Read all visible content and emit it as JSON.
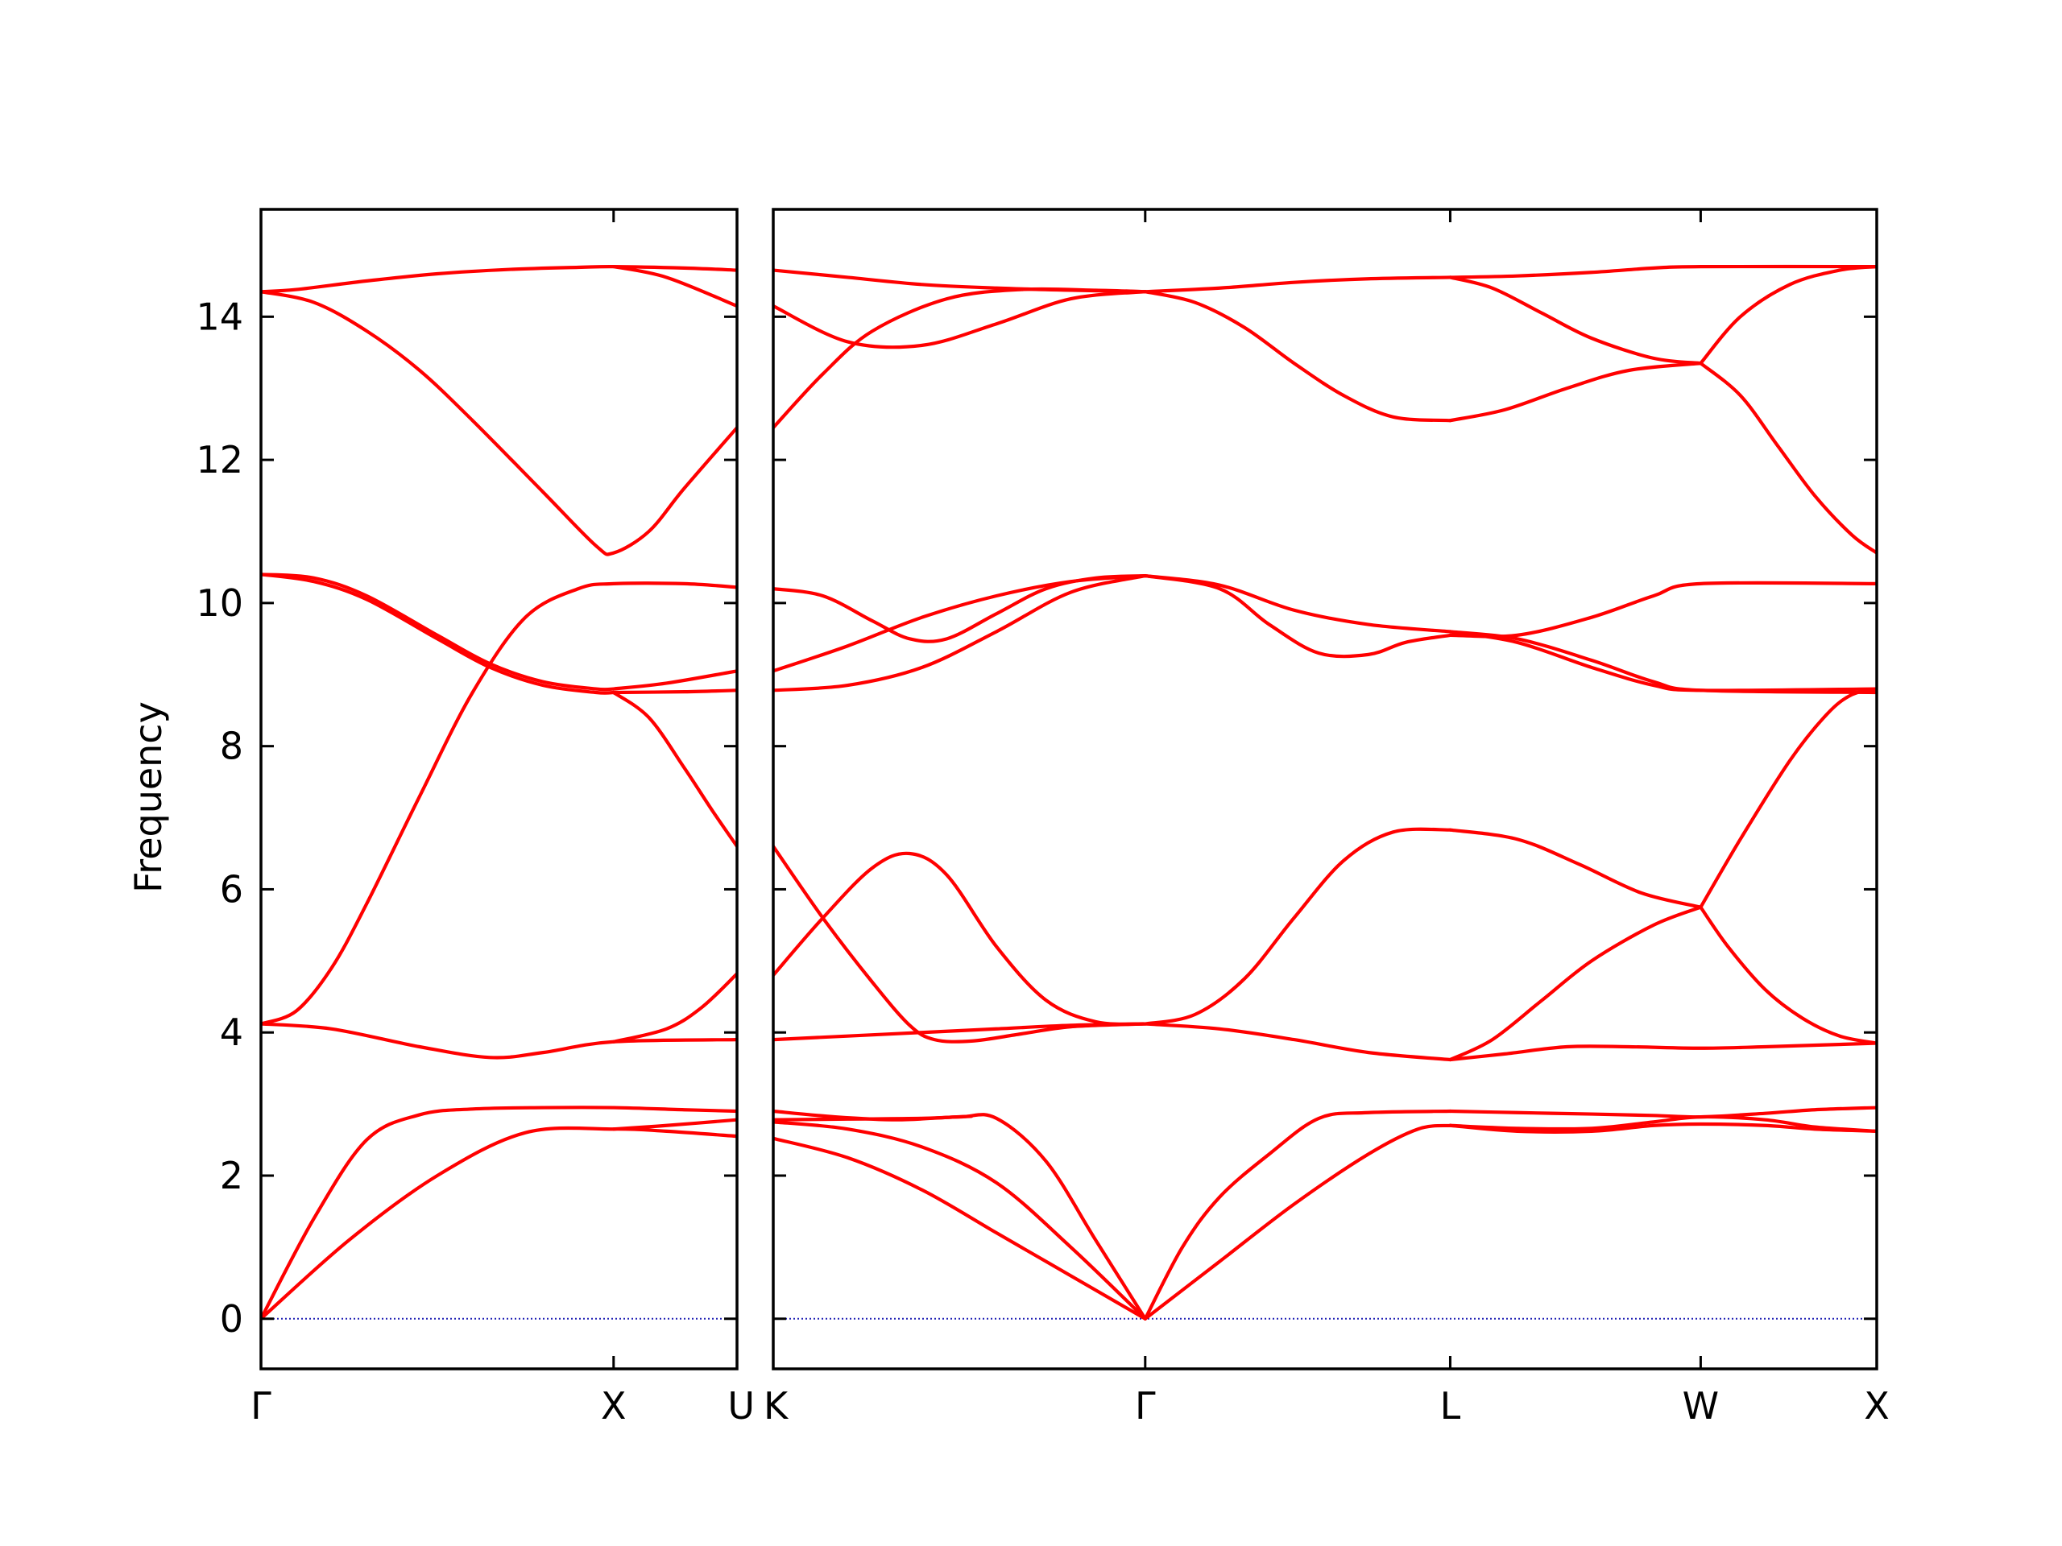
{
  "chart_data": {
    "type": "line",
    "ylabel": "Frequency",
    "ylim": [
      -0.7,
      15.5
    ],
    "yticks": [
      0,
      2,
      4,
      6,
      8,
      10,
      12,
      14
    ],
    "line_color": "#ff0000",
    "zero_line_color": "#1f1fb4",
    "panels": [
      {
        "xlim": [
          0,
          1.35
        ],
        "xticks": [
          {
            "x": 0,
            "label": "Γ"
          },
          {
            "x": 1.0,
            "label": "X"
          },
          {
            "x": 1.35,
            "label": "U"
          }
        ],
        "bands": [
          {
            "x": [
              0,
              0.25,
              0.5,
              0.75,
              1.0,
              1.15,
              1.35
            ],
            "y": [
              0,
              1.1,
              2.0,
              2.6,
              2.65,
              2.62,
              2.55
            ]
          },
          {
            "x": [
              0,
              0.15,
              0.3,
              0.45,
              0.6,
              0.8,
              1.0,
              1.2,
              1.35
            ],
            "y": [
              0,
              1.4,
              2.5,
              2.85,
              2.93,
              2.95,
              2.95,
              2.92,
              2.9
            ]
          },
          {
            "x": [
              1.0,
              1.15,
              1.35
            ],
            "y": [
              2.65,
              2.7,
              2.78
            ]
          },
          {
            "x": [
              0,
              0.2,
              0.45,
              0.65,
              0.8,
              1.0,
              1.35
            ],
            "y": [
              4.12,
              4.05,
              3.8,
              3.65,
              3.72,
              3.87,
              3.9
            ]
          },
          {
            "x": [
              1.0,
              1.15,
              1.25,
              1.35
            ],
            "y": [
              3.87,
              4.05,
              4.35,
              4.82
            ]
          },
          {
            "x": [
              0,
              0.1,
              0.2,
              0.3,
              0.45,
              0.6,
              0.75,
              0.9,
              1.0,
              1.2,
              1.35
            ],
            "y": [
              4.12,
              4.3,
              4.9,
              5.8,
              7.3,
              8.75,
              9.8,
              10.2,
              10.27,
              10.27,
              10.22
            ]
          },
          {
            "x": [
              0,
              0.15,
              0.3,
              0.5,
              0.65,
              0.8,
              0.95,
              1.0
            ],
            "y": [
              10.4,
              10.35,
              10.1,
              9.55,
              9.15,
              8.9,
              8.8,
              8.8
            ]
          },
          {
            "x": [
              0,
              0.15,
              0.3,
              0.5,
              0.65,
              0.8,
              0.95,
              1.0
            ],
            "y": [
              10.4,
              10.3,
              10.05,
              9.5,
              9.1,
              8.85,
              8.75,
              8.75
            ]
          },
          {
            "x": [
              1.0,
              1.15,
              1.35
            ],
            "y": [
              8.8,
              8.88,
              9.05
            ]
          },
          {
            "x": [
              1.0,
              1.2,
              1.35
            ],
            "y": [
              8.75,
              8.76,
              8.78
            ]
          },
          {
            "x": [
              1.0,
              1.1,
              1.2,
              1.28,
              1.35
            ],
            "y": [
              8.75,
              8.4,
              7.7,
              7.1,
              6.6
            ]
          },
          {
            "x": [
              0,
              0.15,
              0.3,
              0.45,
              0.6,
              0.8,
              0.95,
              1.0,
              1.1,
              1.2,
              1.35
            ],
            "y": [
              14.35,
              14.2,
              13.8,
              13.25,
              12.55,
              11.55,
              10.8,
              10.7,
              11.0,
              11.6,
              12.45
            ]
          },
          {
            "x": [
              0,
              0.1,
              0.3,
              0.5,
              0.7,
              0.9,
              1.0,
              1.2,
              1.35
            ],
            "y": [
              14.35,
              14.38,
              14.5,
              14.6,
              14.66,
              14.69,
              14.7,
              14.68,
              14.65
            ]
          },
          {
            "x": [
              1.0,
              1.15,
              1.35
            ],
            "y": [
              14.7,
              14.55,
              14.15
            ]
          }
        ]
      },
      {
        "xlim": [
          0,
          4.45
        ],
        "xticks": [
          {
            "x": 0,
            "label": "K"
          },
          {
            "x": 1.5,
            "label": "Γ"
          },
          {
            "x": 2.73,
            "label": "L"
          },
          {
            "x": 3.74,
            "label": "W"
          },
          {
            "x": 4.45,
            "label": "X"
          }
        ],
        "bands": [
          {
            "x": [
              0,
              0.3,
              0.6,
              0.9,
              1.2,
              1.5
            ],
            "y": [
              2.52,
              2.25,
              1.8,
              1.2,
              0.6,
              0
            ]
          },
          {
            "x": [
              0,
              0.3,
              0.6,
              0.9,
              1.2,
              1.5
            ],
            "y": [
              2.75,
              2.65,
              2.4,
              1.9,
              1.0,
              0
            ]
          },
          {
            "x": [
              0,
              0.25,
              0.5,
              0.75,
              0.9,
              1.1,
              1.3,
              1.5
            ],
            "y": [
              2.9,
              2.82,
              2.78,
              2.82,
              2.8,
              2.2,
              1.1,
              0
            ]
          },
          {
            "x": [
              0,
              0.3,
              0.6,
              0.8
            ],
            "y": [
              2.78,
              2.79,
              2.8,
              2.83
            ]
          },
          {
            "x": [
              1.5,
              1.65,
              1.8,
              2.0,
              2.2,
              2.4,
              2.73
            ],
            "y": [
              0,
              1.0,
              1.7,
              2.3,
              2.8,
              2.88,
              2.9
            ]
          },
          {
            "x": [
              1.5,
              1.8,
              2.1,
              2.4,
              2.6,
              2.73
            ],
            "y": [
              0,
              0.8,
              1.6,
              2.3,
              2.65,
              2.7
            ]
          },
          {
            "x": [
              2.73,
              3.0,
              3.3,
              3.55,
              3.74,
              4.0,
              4.2,
              4.45
            ],
            "y": [
              2.9,
              2.88,
              2.86,
              2.84,
              2.82,
              2.87,
              2.92,
              2.95
            ]
          },
          {
            "x": [
              2.73,
              3.0,
              3.3,
              3.55,
              3.74,
              4.0,
              4.2,
              4.45
            ],
            "y": [
              2.7,
              2.62,
              2.62,
              2.7,
              2.72,
              2.7,
              2.65,
              2.62
            ]
          },
          {
            "x": [
              2.73,
              3.0,
              3.3,
              3.55,
              3.74,
              4.0,
              4.2,
              4.45
            ],
            "y": [
              2.7,
              2.66,
              2.66,
              2.75,
              2.82,
              2.78,
              2.68,
              2.62
            ]
          },
          {
            "x": [
              0,
              0.3,
              0.6,
              0.9,
              1.2,
              1.5
            ],
            "y": [
              3.9,
              3.95,
              4.0,
              4.05,
              4.1,
              4.12
            ]
          },
          {
            "x": [
              0,
              0.2,
              0.4,
              0.55,
              0.65,
              0.8,
              1.0,
              1.2,
              1.5
            ],
            "y": [
              6.6,
              5.6,
              4.7,
              4.1,
              3.9,
              3.88,
              3.98,
              4.08,
              4.12
            ]
          },
          {
            "x": [
              0,
              0.2,
              0.4,
              0.55,
              0.7,
              0.9,
              1.1,
              1.3,
              1.5
            ],
            "y": [
              4.8,
              5.6,
              6.3,
              6.5,
              6.2,
              5.2,
              4.45,
              4.15,
              4.12
            ]
          },
          {
            "x": [
              1.5,
              1.8,
              2.1,
              2.4,
              2.73
            ],
            "y": [
              4.12,
              4.05,
              3.9,
              3.72,
              3.62
            ]
          },
          {
            "x": [
              1.5,
              1.7,
              1.9,
              2.1,
              2.3,
              2.5,
              2.73
            ],
            "y": [
              4.12,
              4.25,
              4.75,
              5.6,
              6.4,
              6.8,
              6.83
            ]
          },
          {
            "x": [
              2.73,
              3.0,
              3.25,
              3.5,
              3.74
            ],
            "y": [
              6.83,
              6.7,
              6.35,
              5.95,
              5.75
            ]
          },
          {
            "x": [
              2.73,
              2.9,
              3.1,
              3.3,
              3.55,
              3.74
            ],
            "y": [
              3.62,
              3.9,
              4.45,
              5.0,
              5.5,
              5.75
            ]
          },
          {
            "x": [
              2.73,
              2.95,
              3.2,
              3.45,
              3.74,
              4.0,
              4.45
            ],
            "y": [
              3.62,
              3.7,
              3.8,
              3.8,
              3.78,
              3.8,
              3.85
            ]
          },
          {
            "x": [
              3.74,
              3.85,
              4.0,
              4.15,
              4.3,
              4.45
            ],
            "y": [
              5.75,
              5.2,
              4.6,
              4.2,
              3.95,
              3.85
            ]
          },
          {
            "x": [
              3.74,
              3.9,
              4.1,
              4.25,
              4.35,
              4.45
            ],
            "y": [
              5.75,
              6.7,
              7.8,
              8.45,
              8.72,
              8.8
            ]
          },
          {
            "x": [
              0,
              0.3,
              0.6,
              0.9,
              1.2,
              1.5
            ],
            "y": [
              8.78,
              8.85,
              9.1,
              9.6,
              10.15,
              10.38
            ]
          },
          {
            "x": [
              0,
              0.3,
              0.6,
              0.9,
              1.2,
              1.5
            ],
            "y": [
              9.05,
              9.4,
              9.8,
              10.1,
              10.3,
              10.38
            ]
          },
          {
            "x": [
              0,
              0.2,
              0.4,
              0.55,
              0.7,
              0.9,
              1.1,
              1.3,
              1.5
            ],
            "y": [
              10.2,
              10.1,
              9.75,
              9.5,
              9.5,
              9.85,
              10.2,
              10.35,
              10.38
            ]
          },
          {
            "x": [
              1.5,
              1.8,
              2.1,
              2.4,
              2.73
            ],
            "y": [
              10.38,
              10.25,
              9.9,
              9.7,
              9.6
            ]
          },
          {
            "x": [
              1.5,
              1.8,
              2.0,
              2.2,
              2.4,
              2.55,
              2.73
            ],
            "y": [
              10.38,
              10.2,
              9.7,
              9.3,
              9.28,
              9.45,
              9.55
            ]
          },
          {
            "x": [
              2.73,
              3.0,
              3.3,
              3.55,
              3.74,
              4.45
            ],
            "y": [
              9.55,
              9.55,
              9.8,
              10.1,
              10.27,
              10.27
            ]
          },
          {
            "x": [
              2.73,
              3.0,
              3.3,
              3.55,
              3.74,
              4.45
            ],
            "y": [
              9.6,
              9.45,
              9.1,
              8.85,
              8.78,
              8.8
            ]
          },
          {
            "x": [
              2.73,
              3.0,
              3.3,
              3.55,
              3.74,
              4.45
            ],
            "y": [
              9.6,
              9.5,
              9.2,
              8.9,
              8.78,
              8.75
            ]
          },
          {
            "x": [
              0,
              0.3,
              0.6,
              0.9,
              1.2,
              1.5
            ],
            "y": [
              14.65,
              14.55,
              14.45,
              14.4,
              14.37,
              14.35
            ]
          },
          {
            "x": [
              0,
              0.3,
              0.6,
              0.9,
              1.2,
              1.5
            ],
            "y": [
              14.15,
              13.65,
              13.6,
              13.9,
              14.25,
              14.35
            ]
          },
          {
            "x": [
              0,
              0.2,
              0.4,
              0.7,
              1.0,
              1.3,
              1.5
            ],
            "y": [
              12.45,
              13.2,
              13.8,
              14.25,
              14.38,
              14.37,
              14.35
            ]
          },
          {
            "x": [
              1.5,
              1.8,
              2.1,
              2.4,
              2.73
            ],
            "y": [
              14.35,
              14.4,
              14.48,
              14.53,
              14.55
            ]
          },
          {
            "x": [
              1.5,
              1.7,
              1.9,
              2.1,
              2.3,
              2.5,
              2.73
            ],
            "y": [
              14.35,
              14.2,
              13.85,
              13.35,
              12.9,
              12.6,
              12.55
            ]
          },
          {
            "x": [
              2.73,
              3.0,
              3.3,
              3.55,
              3.74,
              4.45
            ],
            "y": [
              14.55,
              14.57,
              14.62,
              14.68,
              14.7,
              14.7
            ]
          },
          {
            "x": [
              2.73,
              2.9,
              3.1,
              3.3,
              3.55,
              3.74
            ],
            "y": [
              14.55,
              14.4,
              14.05,
              13.7,
              13.42,
              13.35
            ]
          },
          {
            "x": [
              2.73,
              2.95,
              3.2,
              3.45,
              3.74
            ],
            "y": [
              12.55,
              12.7,
              13.0,
              13.25,
              13.35
            ]
          },
          {
            "x": [
              3.74,
              3.9,
              4.1,
              4.3,
              4.45
            ],
            "y": [
              13.35,
              14.0,
              14.45,
              14.65,
              14.7
            ]
          },
          {
            "x": [
              3.74,
              3.9,
              4.05,
              4.2,
              4.35,
              4.45
            ],
            "y": [
              13.35,
              12.9,
              12.2,
              11.5,
              10.95,
              10.7
            ]
          }
        ]
      }
    ]
  }
}
